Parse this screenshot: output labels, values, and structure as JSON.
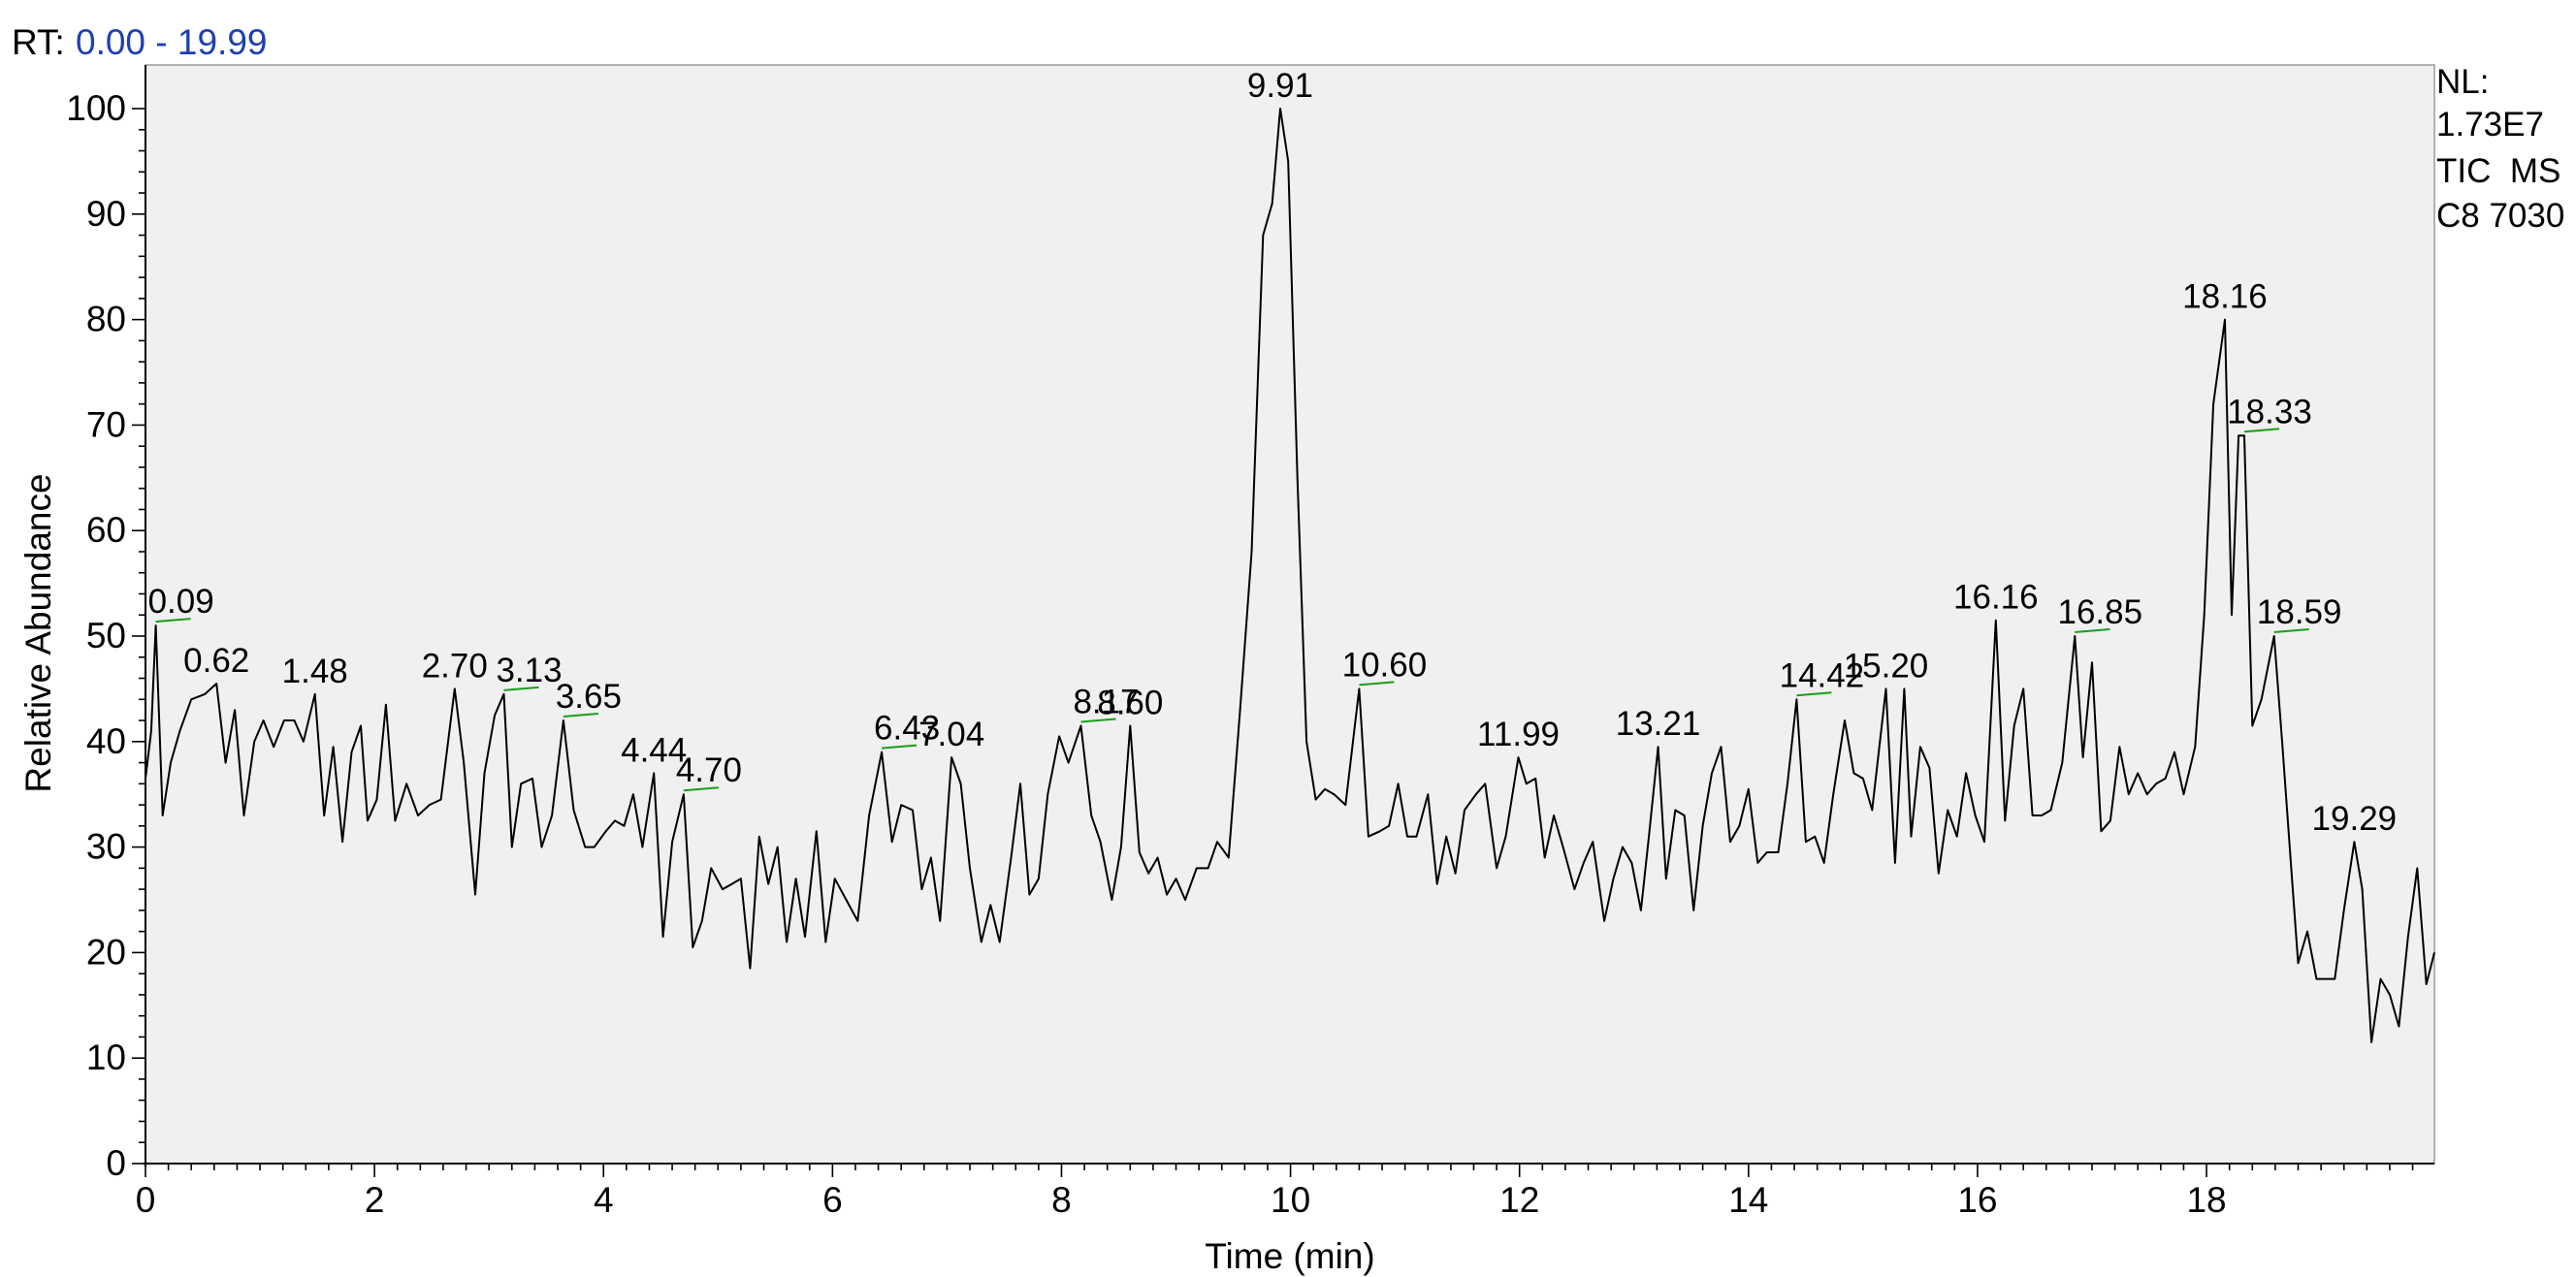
{
  "rt_prefix": "RT:",
  "rt_range": "0.00 - 19.99",
  "info": {
    "nl_label": "NL:",
    "nl_value": "1.73E7",
    "scan_filter": "TIC  MS",
    "sample": "C8 7030"
  },
  "colors": {
    "plot_bg": "#f0f0f0",
    "trace": "#000000",
    "peak_marker": "#1a9e1a",
    "rt_value": "#1f3fb0"
  },
  "chart_data": {
    "type": "line",
    "xlabel": "Time (min)",
    "ylabel": "Relative Abundance",
    "xlim": [
      0,
      19.99
    ],
    "ylim": [
      0,
      100
    ],
    "x_ticks": [
      0,
      2,
      4,
      6,
      8,
      10,
      12,
      14,
      16,
      18
    ],
    "y_ticks": [
      0,
      10,
      20,
      30,
      40,
      50,
      60,
      70,
      80,
      90,
      100
    ],
    "grid": false,
    "series": [
      {
        "points": [
          [
            0.0,
            36.5
          ],
          [
            0.05,
            41
          ],
          [
            0.09,
            51
          ],
          [
            0.15,
            33
          ],
          [
            0.22,
            38
          ],
          [
            0.3,
            41
          ],
          [
            0.4,
            44
          ],
          [
            0.52,
            44.5
          ],
          [
            0.62,
            45.5
          ],
          [
            0.7,
            38
          ],
          [
            0.78,
            43
          ],
          [
            0.86,
            33
          ],
          [
            0.95,
            40
          ],
          [
            1.03,
            42
          ],
          [
            1.12,
            39.5
          ],
          [
            1.21,
            42
          ],
          [
            1.3,
            42
          ],
          [
            1.38,
            40
          ],
          [
            1.48,
            44.5
          ],
          [
            1.56,
            33
          ],
          [
            1.64,
            39.5
          ],
          [
            1.72,
            30.5
          ],
          [
            1.8,
            39
          ],
          [
            1.88,
            41.5
          ],
          [
            1.94,
            32.5
          ],
          [
            2.02,
            34.5
          ],
          [
            2.1,
            43.5
          ],
          [
            2.18,
            32.5
          ],
          [
            2.28,
            36
          ],
          [
            2.38,
            33
          ],
          [
            2.48,
            34
          ],
          [
            2.58,
            34.5
          ],
          [
            2.7,
            45
          ],
          [
            2.78,
            38
          ],
          [
            2.88,
            25.5
          ],
          [
            2.96,
            37
          ],
          [
            3.05,
            42.5
          ],
          [
            3.13,
            44.5
          ],
          [
            3.2,
            30
          ],
          [
            3.28,
            36
          ],
          [
            3.38,
            36.5
          ],
          [
            3.46,
            30
          ],
          [
            3.55,
            33
          ],
          [
            3.65,
            42
          ],
          [
            3.74,
            33.5
          ],
          [
            3.84,
            30
          ],
          [
            3.92,
            30
          ],
          [
            4.02,
            31.5
          ],
          [
            4.1,
            32.5
          ],
          [
            4.18,
            32
          ],
          [
            4.26,
            35
          ],
          [
            4.34,
            30
          ],
          [
            4.44,
            37
          ],
          [
            4.52,
            21.5
          ],
          [
            4.6,
            30.5
          ],
          [
            4.7,
            35
          ],
          [
            4.78,
            20.5
          ],
          [
            4.86,
            23
          ],
          [
            4.94,
            28
          ],
          [
            5.04,
            26
          ],
          [
            5.12,
            26.5
          ],
          [
            5.2,
            27
          ],
          [
            5.28,
            18.5
          ],
          [
            5.36,
            31
          ],
          [
            5.44,
            26.5
          ],
          [
            5.52,
            30
          ],
          [
            5.6,
            21
          ],
          [
            5.68,
            27
          ],
          [
            5.76,
            21.5
          ],
          [
            5.86,
            31.5
          ],
          [
            5.94,
            21
          ],
          [
            6.02,
            27
          ],
          [
            6.12,
            25
          ],
          [
            6.22,
            23
          ],
          [
            6.32,
            33
          ],
          [
            6.43,
            39
          ],
          [
            6.52,
            30.5
          ],
          [
            6.6,
            34
          ],
          [
            6.7,
            33.5
          ],
          [
            6.78,
            26
          ],
          [
            6.86,
            29
          ],
          [
            6.94,
            23
          ],
          [
            7.04,
            38.5
          ],
          [
            7.12,
            36
          ],
          [
            7.2,
            28
          ],
          [
            7.3,
            21
          ],
          [
            7.38,
            24.5
          ],
          [
            7.46,
            21
          ],
          [
            7.56,
            29
          ],
          [
            7.64,
            36
          ],
          [
            7.72,
            25.5
          ],
          [
            7.8,
            27
          ],
          [
            7.88,
            35
          ],
          [
            7.98,
            40.5
          ],
          [
            8.06,
            38
          ],
          [
            8.17,
            41.5
          ],
          [
            8.26,
            33
          ],
          [
            8.34,
            30.5
          ],
          [
            8.44,
            25
          ],
          [
            8.52,
            30
          ],
          [
            8.6,
            41.5
          ],
          [
            8.68,
            29.5
          ],
          [
            8.76,
            27.5
          ],
          [
            8.84,
            29
          ],
          [
            8.92,
            25.5
          ],
          [
            9.0,
            27
          ],
          [
            9.08,
            25
          ],
          [
            9.18,
            28
          ],
          [
            9.28,
            28
          ],
          [
            9.36,
            30.5
          ],
          [
            9.46,
            29
          ],
          [
            9.56,
            43
          ],
          [
            9.66,
            58
          ],
          [
            9.76,
            88
          ],
          [
            9.84,
            91
          ],
          [
            9.91,
            100
          ],
          [
            9.98,
            95
          ],
          [
            10.06,
            65
          ],
          [
            10.14,
            40
          ],
          [
            10.22,
            34.5
          ],
          [
            10.3,
            35.5
          ],
          [
            10.38,
            35
          ],
          [
            10.48,
            34
          ],
          [
            10.6,
            45
          ],
          [
            10.68,
            31
          ],
          [
            10.78,
            31.5
          ],
          [
            10.86,
            32
          ],
          [
            10.94,
            36
          ],
          [
            11.02,
            31
          ],
          [
            11.1,
            31
          ],
          [
            11.2,
            35
          ],
          [
            11.28,
            26.5
          ],
          [
            11.36,
            31
          ],
          [
            11.44,
            27.5
          ],
          [
            11.52,
            33.5
          ],
          [
            11.62,
            35
          ],
          [
            11.7,
            36
          ],
          [
            11.8,
            28
          ],
          [
            11.88,
            31
          ],
          [
            11.99,
            38.5
          ],
          [
            12.06,
            36
          ],
          [
            12.14,
            36.5
          ],
          [
            12.22,
            29
          ],
          [
            12.3,
            33
          ],
          [
            12.38,
            30
          ],
          [
            12.48,
            26
          ],
          [
            12.56,
            28.5
          ],
          [
            12.64,
            30.5
          ],
          [
            12.74,
            23
          ],
          [
            12.82,
            27
          ],
          [
            12.9,
            30
          ],
          [
            12.98,
            28.5
          ],
          [
            13.06,
            24
          ],
          [
            13.13,
            31
          ],
          [
            13.21,
            39.5
          ],
          [
            13.28,
            27
          ],
          [
            13.36,
            33.5
          ],
          [
            13.44,
            33
          ],
          [
            13.52,
            24
          ],
          [
            13.6,
            32
          ],
          [
            13.68,
            37
          ],
          [
            13.76,
            39.5
          ],
          [
            13.84,
            30.5
          ],
          [
            13.92,
            32
          ],
          [
            14.0,
            35.5
          ],
          [
            14.08,
            28.5
          ],
          [
            14.16,
            29.5
          ],
          [
            14.26,
            29.5
          ],
          [
            14.34,
            36
          ],
          [
            14.42,
            44
          ],
          [
            14.5,
            30.5
          ],
          [
            14.58,
            31
          ],
          [
            14.66,
            28.5
          ],
          [
            14.74,
            35
          ],
          [
            14.84,
            42
          ],
          [
            14.92,
            37
          ],
          [
            15.0,
            36.5
          ],
          [
            15.08,
            33.5
          ],
          [
            15.2,
            45
          ],
          [
            15.28,
            28.5
          ],
          [
            15.36,
            45
          ],
          [
            15.42,
            31
          ],
          [
            15.5,
            39.5
          ],
          [
            15.58,
            37.5
          ],
          [
            15.66,
            27.5
          ],
          [
            15.74,
            33.5
          ],
          [
            15.82,
            31
          ],
          [
            15.9,
            37
          ],
          [
            15.98,
            33
          ],
          [
            16.06,
            30.5
          ],
          [
            16.16,
            51.5
          ],
          [
            16.24,
            32.5
          ],
          [
            16.32,
            41.5
          ],
          [
            16.4,
            45
          ],
          [
            16.48,
            33
          ],
          [
            16.56,
            33
          ],
          [
            16.64,
            33.5
          ],
          [
            16.74,
            38
          ],
          [
            16.85,
            50
          ],
          [
            16.92,
            38.5
          ],
          [
            17.0,
            47.5
          ],
          [
            17.08,
            31.5
          ],
          [
            17.16,
            32.5
          ],
          [
            17.24,
            39.5
          ],
          [
            17.32,
            35
          ],
          [
            17.4,
            37
          ],
          [
            17.48,
            35
          ],
          [
            17.56,
            36
          ],
          [
            17.64,
            36.5
          ],
          [
            17.72,
            39
          ],
          [
            17.8,
            35
          ],
          [
            17.9,
            39.5
          ],
          [
            17.98,
            52
          ],
          [
            18.06,
            72
          ],
          [
            18.16,
            80
          ],
          [
            18.22,
            52
          ],
          [
            18.28,
            69
          ],
          [
            18.33,
            69
          ],
          [
            18.4,
            41.5
          ],
          [
            18.48,
            44
          ],
          [
            18.59,
            50
          ],
          [
            18.66,
            40
          ],
          [
            18.74,
            28
          ],
          [
            18.8,
            19
          ],
          [
            18.88,
            22
          ],
          [
            18.96,
            17.5
          ],
          [
            19.04,
            17.5
          ],
          [
            19.12,
            17.5
          ],
          [
            19.2,
            24
          ],
          [
            19.29,
            30.5
          ],
          [
            19.36,
            26
          ],
          [
            19.44,
            11.5
          ],
          [
            19.52,
            17.5
          ],
          [
            19.6,
            16
          ],
          [
            19.68,
            13
          ],
          [
            19.76,
            21.5
          ],
          [
            19.84,
            28
          ],
          [
            19.92,
            17
          ],
          [
            19.99,
            20
          ]
        ]
      }
    ],
    "peak_labels": [
      {
        "label": "0.09",
        "x": 0.09,
        "y": 51,
        "marked": true
      },
      {
        "label": "0.62",
        "x": 0.62,
        "y": 45.5,
        "marked": false
      },
      {
        "label": "1.48",
        "x": 1.48,
        "y": 44.5,
        "marked": false
      },
      {
        "label": "2.70",
        "x": 2.7,
        "y": 45,
        "marked": false
      },
      {
        "label": "3.13",
        "x": 3.13,
        "y": 44.5,
        "marked": true
      },
      {
        "label": "3.65",
        "x": 3.65,
        "y": 42,
        "marked": true
      },
      {
        "label": "4.44",
        "x": 4.44,
        "y": 37,
        "marked": false
      },
      {
        "label": "4.70",
        "x": 4.7,
        "y": 35,
        "marked": true
      },
      {
        "label": "6.43",
        "x": 6.43,
        "y": 39,
        "marked": true
      },
      {
        "label": "7.04",
        "x": 7.04,
        "y": 38.5,
        "marked": false
      },
      {
        "label": "8.17",
        "x": 8.17,
        "y": 41.5,
        "marked": true
      },
      {
        "label": "8.60",
        "x": 8.6,
        "y": 41.5,
        "marked": false
      },
      {
        "label": "9.91",
        "x": 9.91,
        "y": 100,
        "marked": false
      },
      {
        "label": "10.60",
        "x": 10.6,
        "y": 45,
        "marked": true
      },
      {
        "label": "11.99",
        "x": 11.99,
        "y": 38.5,
        "marked": false
      },
      {
        "label": "13.21",
        "x": 13.21,
        "y": 39.5,
        "marked": false
      },
      {
        "label": "14.42",
        "x": 14.42,
        "y": 44,
        "marked": true
      },
      {
        "label": "15.20",
        "x": 15.2,
        "y": 45,
        "marked": false
      },
      {
        "label": "16.16",
        "x": 16.16,
        "y": 51.5,
        "marked": false
      },
      {
        "label": "16.85",
        "x": 16.85,
        "y": 50,
        "marked": true
      },
      {
        "label": "18.16",
        "x": 18.16,
        "y": 80,
        "marked": false
      },
      {
        "label": "18.33",
        "x": 18.33,
        "y": 69,
        "marked": true
      },
      {
        "label": "18.59",
        "x": 18.59,
        "y": 50,
        "marked": true
      },
      {
        "label": "19.29",
        "x": 19.29,
        "y": 30.5,
        "marked": false
      }
    ]
  }
}
